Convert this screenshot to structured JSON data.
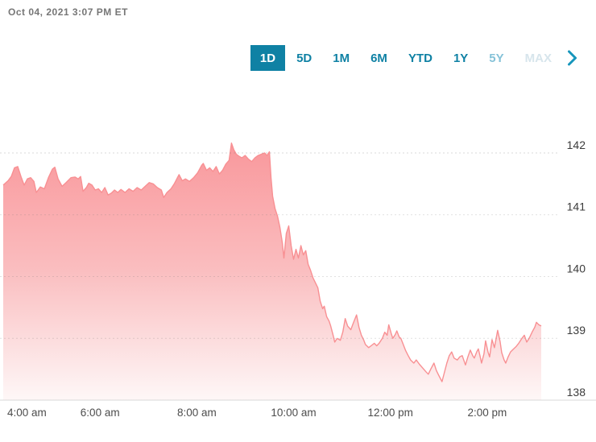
{
  "header": {
    "timestamp": "Oct 04, 2021 3:07 PM ET"
  },
  "range_tabs": {
    "items": [
      {
        "label": "1D",
        "state": "active"
      },
      {
        "label": "5D",
        "state": "default"
      },
      {
        "label": "1M",
        "state": "default"
      },
      {
        "label": "6M",
        "state": "default"
      },
      {
        "label": "YTD",
        "state": "default"
      },
      {
        "label": "1Y",
        "state": "default"
      },
      {
        "label": "5Y",
        "state": "muted"
      },
      {
        "label": "MAX",
        "state": "disabled"
      }
    ],
    "more_icon": "chevron-right"
  },
  "colors": {
    "accent_teal": "#0F81A4",
    "chevron_teal": "#1796BC",
    "line_salmon": "#F89093",
    "fill_top": "#F9969A",
    "fill_mid": "#FABDBF",
    "fill_bottom": "#FEF7F7",
    "timestamp_gray": "#767676",
    "axis_text": "#3B3B3B",
    "gridline": "rgba(120,120,120,0.22)",
    "baseline": "#D8D8D8"
  },
  "chart_data": {
    "type": "area",
    "title": "Intraday stock price, 1D view",
    "x_unit": "minutes since 4:00 am ET",
    "session_start_label": "4:00 am",
    "session_end_label": "3:07 PM ET",
    "ylim": [
      138,
      142.4
    ],
    "y_ticks": [
      "142",
      "141",
      "140",
      "139",
      "138"
    ],
    "x_ticks": [
      {
        "minute": 0,
        "label": "4:00 am"
      },
      {
        "minute": 120,
        "label": "6:00 am"
      },
      {
        "minute": 240,
        "label": "8:00 am"
      },
      {
        "minute": 360,
        "label": "10:00 am"
      },
      {
        "minute": 480,
        "label": "12:00 pm"
      },
      {
        "minute": 600,
        "label": "2:00 pm"
      }
    ],
    "grid": true,
    "legend": "none",
    "last_price": 139.2,
    "high": 142.16,
    "low": 138.3,
    "points": [
      [
        0,
        141.48
      ],
      [
        6,
        141.55
      ],
      [
        10,
        141.62
      ],
      [
        14,
        141.76
      ],
      [
        18,
        141.78
      ],
      [
        22,
        141.62
      ],
      [
        26,
        141.48
      ],
      [
        30,
        141.58
      ],
      [
        34,
        141.6
      ],
      [
        38,
        141.54
      ],
      [
        41,
        141.36
      ],
      [
        46,
        141.45
      ],
      [
        51,
        141.42
      ],
      [
        56,
        141.6
      ],
      [
        61,
        141.74
      ],
      [
        64,
        141.77
      ],
      [
        68,
        141.58
      ],
      [
        73,
        141.46
      ],
      [
        78,
        141.52
      ],
      [
        84,
        141.6
      ],
      [
        89,
        141.61
      ],
      [
        93,
        141.58
      ],
      [
        96,
        141.62
      ],
      [
        99,
        141.38
      ],
      [
        103,
        141.44
      ],
      [
        106,
        141.51
      ],
      [
        110,
        141.48
      ],
      [
        114,
        141.4
      ],
      [
        118,
        141.42
      ],
      [
        122,
        141.36
      ],
      [
        126,
        141.44
      ],
      [
        130,
        141.32
      ],
      [
        134,
        141.35
      ],
      [
        138,
        141.4
      ],
      [
        142,
        141.36
      ],
      [
        146,
        141.41
      ],
      [
        151,
        141.36
      ],
      [
        156,
        141.42
      ],
      [
        161,
        141.38
      ],
      [
        166,
        141.44
      ],
      [
        171,
        141.4
      ],
      [
        176,
        141.46
      ],
      [
        181,
        141.52
      ],
      [
        186,
        141.5
      ],
      [
        191,
        141.44
      ],
      [
        196,
        141.4
      ],
      [
        199,
        141.28
      ],
      [
        203,
        141.36
      ],
      [
        208,
        141.42
      ],
      [
        212,
        141.5
      ],
      [
        216,
        141.6
      ],
      [
        218,
        141.65
      ],
      [
        222,
        141.55
      ],
      [
        226,
        141.58
      ],
      [
        231,
        141.54
      ],
      [
        236,
        141.6
      ],
      [
        241,
        141.68
      ],
      [
        246,
        141.8
      ],
      [
        248,
        141.83
      ],
      [
        252,
        141.72
      ],
      [
        256,
        141.76
      ],
      [
        260,
        141.7
      ],
      [
        264,
        141.78
      ],
      [
        268,
        141.66
      ],
      [
        272,
        141.72
      ],
      [
        276,
        141.82
      ],
      [
        280,
        141.88
      ],
      [
        283,
        142.16
      ],
      [
        286,
        142.05
      ],
      [
        289,
        141.98
      ],
      [
        292,
        141.95
      ],
      [
        296,
        141.92
      ],
      [
        300,
        141.96
      ],
      [
        304,
        141.9
      ],
      [
        308,
        141.86
      ],
      [
        312,
        141.92
      ],
      [
        316,
        141.96
      ],
      [
        320,
        141.98
      ],
      [
        324,
        142.0
      ],
      [
        327,
        141.96
      ],
      [
        330,
        142.02
      ],
      [
        332,
        141.6
      ],
      [
        334,
        141.3
      ],
      [
        337,
        141.1
      ],
      [
        340,
        140.98
      ],
      [
        343,
        140.8
      ],
      [
        346,
        140.55
      ],
      [
        348,
        140.3
      ],
      [
        351,
        140.7
      ],
      [
        354,
        140.82
      ],
      [
        357,
        140.5
      ],
      [
        360,
        140.28
      ],
      [
        363,
        140.44
      ],
      [
        366,
        140.3
      ],
      [
        369,
        140.5
      ],
      [
        372,
        140.35
      ],
      [
        375,
        140.42
      ],
      [
        378,
        140.2
      ],
      [
        381,
        140.1
      ],
      [
        384,
        139.98
      ],
      [
        387,
        139.9
      ],
      [
        390,
        139.82
      ],
      [
        393,
        139.6
      ],
      [
        396,
        139.48
      ],
      [
        398,
        139.52
      ],
      [
        401,
        139.35
      ],
      [
        404,
        139.28
      ],
      [
        406,
        139.2
      ],
      [
        409,
        139.05
      ],
      [
        411,
        138.94
      ],
      [
        414,
        139.0
      ],
      [
        418,
        138.97
      ],
      [
        421,
        139.1
      ],
      [
        424,
        139.32
      ],
      [
        427,
        139.2
      ],
      [
        431,
        139.14
      ],
      [
        434,
        139.25
      ],
      [
        438,
        139.38
      ],
      [
        441,
        139.18
      ],
      [
        444,
        139.05
      ],
      [
        447,
        138.97
      ],
      [
        449,
        138.9
      ],
      [
        453,
        138.85
      ],
      [
        456,
        138.88
      ],
      [
        460,
        138.92
      ],
      [
        463,
        138.88
      ],
      [
        466,
        138.92
      ],
      [
        470,
        139.0
      ],
      [
        473,
        139.1
      ],
      [
        476,
        139.05
      ],
      [
        478,
        139.22
      ],
      [
        481,
        139.08
      ],
      [
        483,
        139.0
      ],
      [
        486,
        139.06
      ],
      [
        488,
        139.12
      ],
      [
        491,
        139.02
      ],
      [
        493,
        139.0
      ],
      [
        496,
        138.9
      ],
      [
        499,
        138.8
      ],
      [
        502,
        138.72
      ],
      [
        505,
        138.65
      ],
      [
        509,
        138.6
      ],
      [
        512,
        138.65
      ],
      [
        516,
        138.58
      ],
      [
        520,
        138.52
      ],
      [
        524,
        138.46
      ],
      [
        527,
        138.42
      ],
      [
        530,
        138.5
      ],
      [
        534,
        138.6
      ],
      [
        537,
        138.48
      ],
      [
        540,
        138.4
      ],
      [
        544,
        138.3
      ],
      [
        547,
        138.45
      ],
      [
        550,
        138.6
      ],
      [
        553,
        138.72
      ],
      [
        556,
        138.78
      ],
      [
        559,
        138.68
      ],
      [
        563,
        138.65
      ],
      [
        566,
        138.7
      ],
      [
        569,
        138.72
      ],
      [
        573,
        138.57
      ],
      [
        576,
        138.7
      ],
      [
        579,
        138.81
      ],
      [
        582,
        138.72
      ],
      [
        584,
        138.68
      ],
      [
        587,
        138.78
      ],
      [
        589,
        138.83
      ],
      [
        591,
        138.72
      ],
      [
        593,
        138.6
      ],
      [
        596,
        138.75
      ],
      [
        598,
        138.96
      ],
      [
        601,
        138.78
      ],
      [
        603,
        138.7
      ],
      [
        606,
        138.98
      ],
      [
        609,
        138.85
      ],
      [
        613,
        139.13
      ],
      [
        616,
        138.95
      ],
      [
        618,
        138.77
      ],
      [
        621,
        138.65
      ],
      [
        623,
        138.6
      ],
      [
        626,
        138.7
      ],
      [
        629,
        138.78
      ],
      [
        632,
        138.82
      ],
      [
        636,
        138.87
      ],
      [
        639,
        138.92
      ],
      [
        643,
        139.0
      ],
      [
        646,
        139.05
      ],
      [
        649,
        138.94
      ],
      [
        652,
        139.0
      ],
      [
        656,
        139.11
      ],
      [
        659,
        139.18
      ],
      [
        661,
        139.26
      ],
      [
        664,
        139.22
      ],
      [
        667,
        139.2
      ]
    ]
  }
}
